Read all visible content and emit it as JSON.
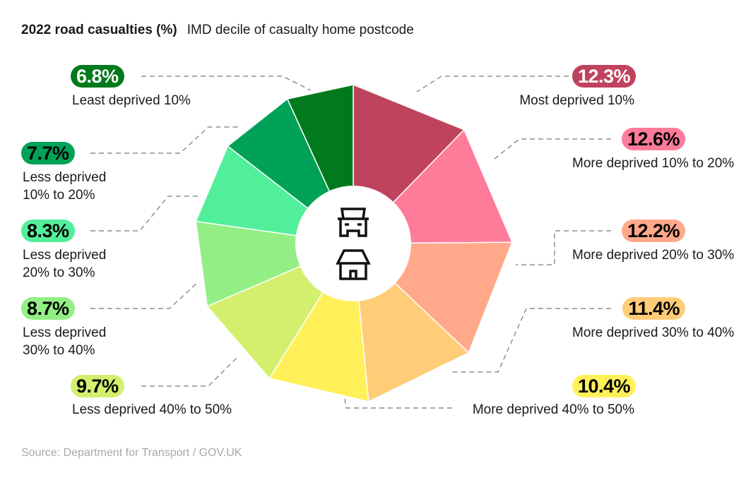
{
  "chart_data": {
    "type": "pie",
    "title": "2022 road casualties (%)",
    "subtitle": "IMD decile of casualty home postcode",
    "categories": [
      "Most deprived 10%",
      "More deprived 10% to 20%",
      "More deprived 20% to 30%",
      "More deprived 30% to 40%",
      "More deprived 40% to 50%",
      "Less deprived 40% to 50%",
      "Less deprived 30% to 40%",
      "Less deprived 20% to 30%",
      "Less deprived 10% to 20%",
      "Least deprived 10%"
    ],
    "values": [
      12.3,
      12.6,
      12.2,
      11.4,
      10.4,
      9.7,
      8.7,
      8.3,
      7.7,
      6.8
    ],
    "value_labels": [
      "12.3%",
      "12.6%",
      "12.2%",
      "11.4%",
      "10.4%",
      "9.7%",
      "8.7%",
      "8.3%",
      "7.7%",
      "6.8%"
    ],
    "colors": [
      "#c0435e",
      "#ff7b9a",
      "#ffa98a",
      "#ffcc77",
      "#fff05a",
      "#d4ef6e",
      "#93ef85",
      "#52ef9a",
      "#00a258",
      "#007a1c"
    ],
    "label_text_colors": [
      "#ffffff",
      "#000000",
      "#000000",
      "#000000",
      "#000000",
      "#000000",
      "#000000",
      "#000000",
      "#000000",
      "#ffffff"
    ],
    "center_icons": [
      "car-icon",
      "house-icon"
    ],
    "source": "Source: Department for Transport / GOV.UK"
  }
}
